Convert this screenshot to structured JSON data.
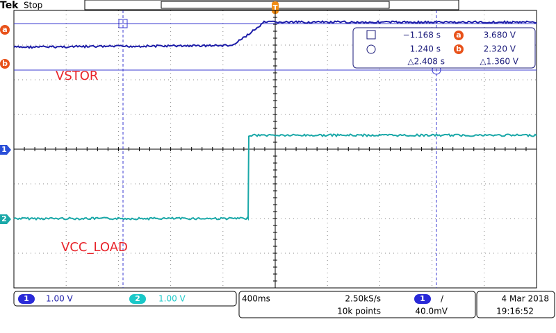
{
  "header": {
    "brand": "Tek",
    "status": "Stop",
    "trigger_marker": "T"
  },
  "cursor_markers": {
    "a": "a",
    "b": "b"
  },
  "cursor_readout": {
    "time_a": "−1.168 s",
    "volt_a_marker": "a",
    "volt_a": "3.680 V",
    "time_b": "1.240 s",
    "volt_b_marker": "b",
    "volt_b": "2.320 V",
    "delta_time": "△2.408 s",
    "delta_volt": "△1.360 V"
  },
  "channel_labels": {
    "ch1_marker": "1",
    "ch2_marker": "2",
    "ch1_name": "VSTOR",
    "ch2_name": "VCC_LOAD"
  },
  "status_bar": {
    "ch1_badge": "1",
    "ch1_scale": "1.00 V",
    "ch2_badge": "2",
    "ch2_scale": "1.00 V",
    "timebase": "400ms",
    "sample_rate": "2.50kS/s",
    "record_length": "10k points",
    "trigger_source": "1",
    "trigger_slope": "/",
    "trigger_level": "40.0mV",
    "date": "4 Mar  2018",
    "time": "19:16:52"
  }
}
